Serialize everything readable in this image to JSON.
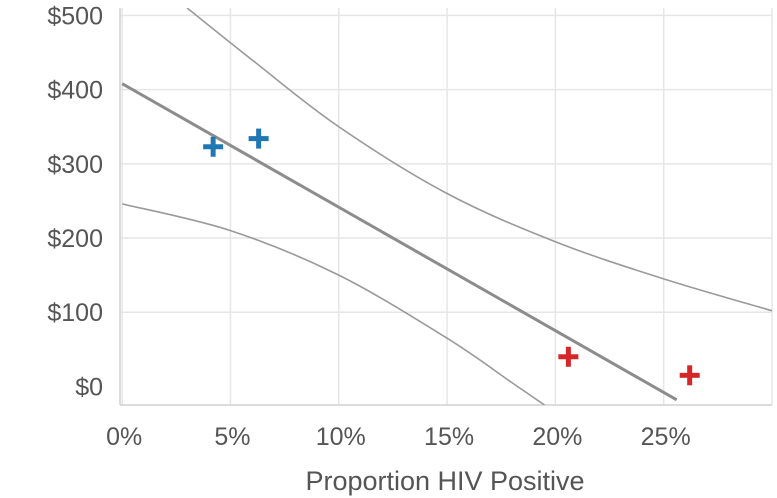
{
  "chart_data": {
    "type": "scatter",
    "title": "",
    "xlabel": "Proportion HIV Positive",
    "ylabel": "",
    "xlim": [
      -0.001,
      0.3
    ],
    "ylim": [
      -25,
      510
    ],
    "x_ticks": [
      0,
      0.05,
      0.1,
      0.15,
      0.2,
      0.25
    ],
    "x_tick_labels": [
      "0%",
      "5%",
      "10%",
      "15%",
      "20%",
      "25%"
    ],
    "y_ticks": [
      0,
      100,
      200,
      300,
      400,
      500
    ],
    "y_tick_labels": [
      "$0",
      "$100",
      "$200",
      "$300",
      "$400",
      "$500"
    ],
    "grid": true,
    "legend": "none",
    "series": [
      {
        "color": "#1f77b4",
        "marker": "plus",
        "x": [
          0.042,
          0.063
        ],
        "y": [
          323,
          334
        ]
      },
      {
        "color": "#d62728",
        "marker": "plus",
        "x": [
          0.206,
          0.262
        ],
        "y": [
          40,
          15
        ]
      }
    ],
    "regression_line": {
      "color": "#8c8c8c",
      "x": [
        0,
        0.256
      ],
      "y": [
        408,
        -18
      ]
    },
    "confidence_bands": {
      "color": "#9a9a9a",
      "upper": {
        "x": [
          0.03,
          0.06,
          0.1,
          0.15,
          0.2,
          0.25,
          0.3
        ],
        "y": [
          510,
          440,
          350,
          260,
          195,
          145,
          102
        ]
      },
      "lower": {
        "x": [
          0,
          0.05,
          0.1,
          0.15,
          0.18,
          0.195
        ],
        "y": [
          246,
          210,
          150,
          65,
          5,
          -25
        ]
      }
    }
  }
}
